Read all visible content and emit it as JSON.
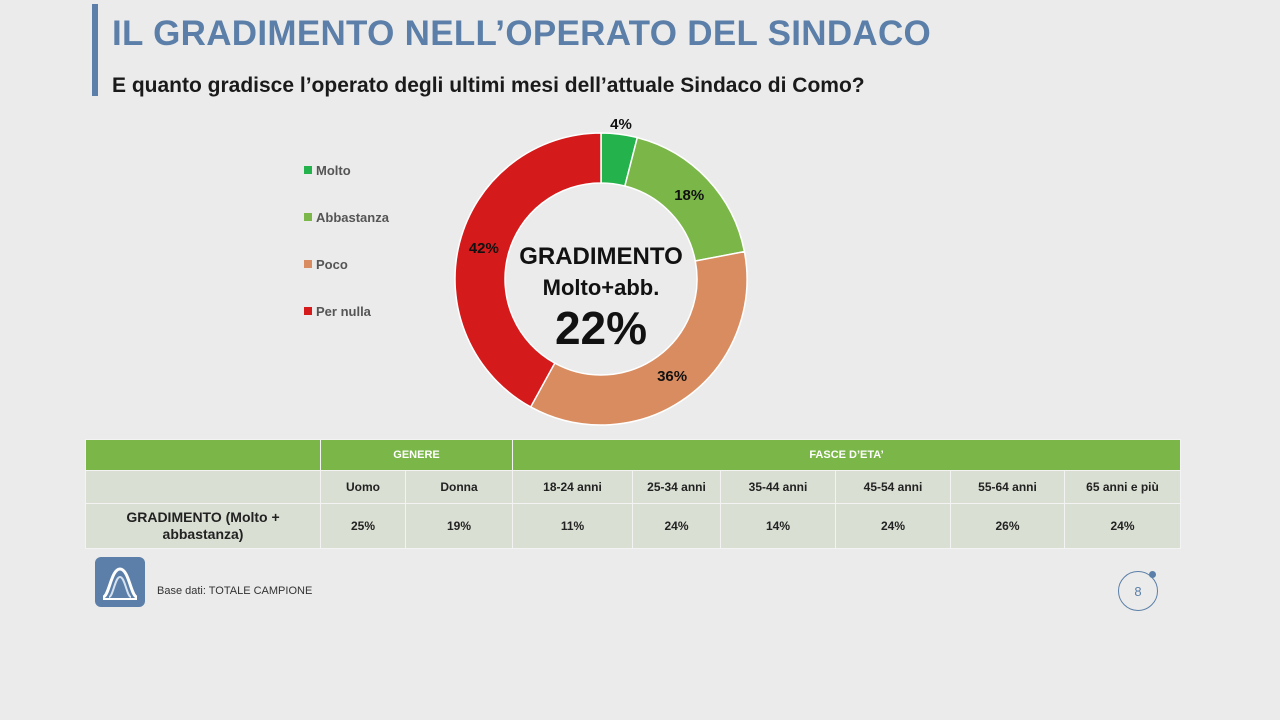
{
  "header": {
    "title": "IL GRADIMENTO NELL’OPERATO DEL SINDACO",
    "subtitle": "E quanto gradisce l’operato degli ultimi mesi dell’attuale Sindaco di Como?"
  },
  "chart_data": {
    "type": "pie",
    "donut": true,
    "categories": [
      "Molto",
      "Abbastanza",
      "Poco",
      "Per nulla"
    ],
    "values": [
      4,
      18,
      36,
      42
    ],
    "labels": [
      "4%",
      "18%",
      "36%",
      "42%"
    ],
    "colors": [
      "#23b24b",
      "#7ab648",
      "#d98c5f",
      "#d41a1a"
    ],
    "center": {
      "line1": "GRADIMENTO",
      "line2": "Molto+abb.",
      "line3": "22%"
    },
    "legend_placement": "left"
  },
  "table": {
    "groups": [
      "GENERE",
      "FASCE D’ETA’"
    ],
    "columns": [
      "Uomo",
      "Donna",
      "18-24 anni",
      "25-34 anni",
      "35-44 anni",
      "45-54 anni",
      "55-64 anni",
      "65 anni e più"
    ],
    "row_label": "GRADIMENTO (Molto + abbastanza)",
    "values": [
      "25%",
      "19%",
      "11%",
      "24%",
      "14%",
      "24%",
      "26%",
      "24%"
    ]
  },
  "footer": {
    "base_text": "Base dati: TOTALE CAMPIONE",
    "page_number": "8",
    "brand_color": "#5b7fa8"
  }
}
